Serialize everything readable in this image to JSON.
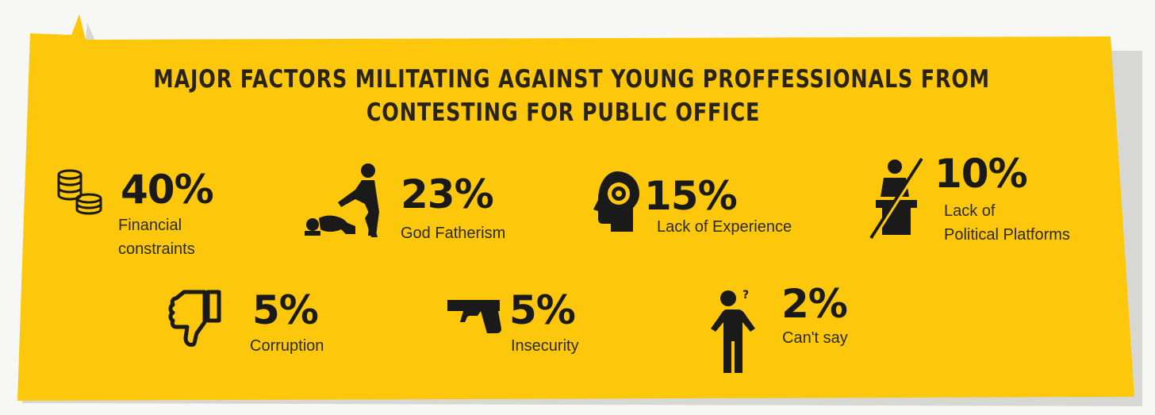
{
  "title": {
    "line1": "MAJOR FACTORS MILITATING AGAINST YOUNG PROFFESSIONALS FROM",
    "line2": "CONTESTING FOR PUBLIC OFFICE"
  },
  "colors": {
    "panel": "#fdc80b",
    "text": "#1a1a1a",
    "background": "#f7f7f5"
  },
  "factors": [
    {
      "percent": "40%",
      "label1": "Financial",
      "label2": "constraints",
      "icon": "coins-icon"
    },
    {
      "percent": "23%",
      "label1": "God Fatherism",
      "icon": "kneeling-person-icon"
    },
    {
      "percent": "15%",
      "label1": "Lack of Experience",
      "icon": "head-target-icon"
    },
    {
      "percent": "10%",
      "label1": "Lack of",
      "label2": "Political Platforms",
      "icon": "no-podium-icon"
    },
    {
      "percent": "5%",
      "label1": "Corruption",
      "icon": "thumbs-down-icon"
    },
    {
      "percent": "5%",
      "label1": "Insecurity",
      "icon": "gun-icon"
    },
    {
      "percent": "2%",
      "label1": "Can't say",
      "icon": "confused-person-icon"
    }
  ]
}
